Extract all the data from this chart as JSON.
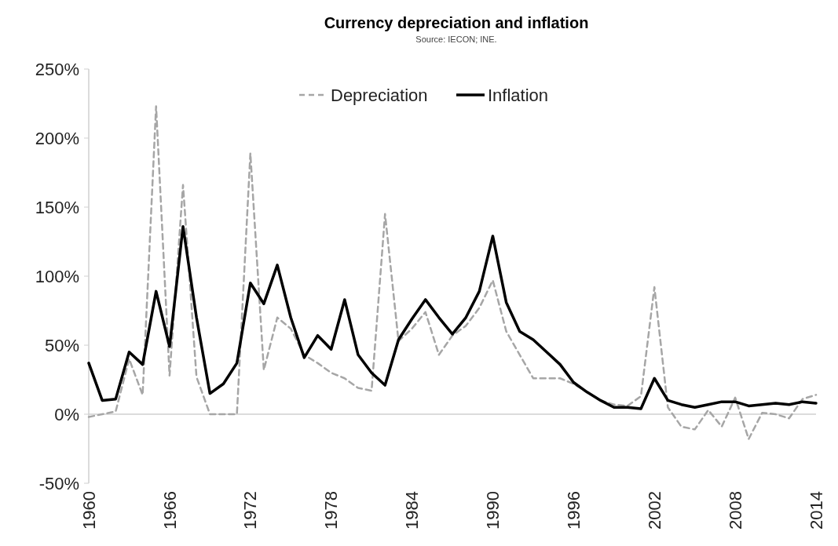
{
  "chart_data": {
    "type": "line",
    "title": "Currency depreciation and inflation",
    "annotations": [
      "Source: IECON; INE."
    ],
    "x": [
      1960,
      1961,
      1962,
      1963,
      1964,
      1965,
      1966,
      1967,
      1968,
      1969,
      1970,
      1971,
      1972,
      1973,
      1974,
      1975,
      1976,
      1977,
      1978,
      1979,
      1980,
      1981,
      1982,
      1983,
      1984,
      1985,
      1986,
      1987,
      1988,
      1989,
      1990,
      1991,
      1992,
      1993,
      1994,
      1995,
      1996,
      1997,
      1998,
      1999,
      2000,
      2001,
      2002,
      2003,
      2004,
      2005,
      2006,
      2007,
      2008,
      2009,
      2010,
      2011,
      2012,
      2013,
      2014
    ],
    "series": [
      {
        "name": "Depreciation",
        "color": "#a6a6a6",
        "line_style": "dashed",
        "values": [
          -2,
          0,
          2,
          40,
          14,
          223,
          28,
          166,
          27,
          0,
          0,
          0,
          189,
          32,
          70,
          62,
          43,
          37,
          30,
          26,
          19,
          17,
          145,
          53,
          62,
          74,
          43,
          57,
          64,
          77,
          97,
          60,
          43,
          26,
          26,
          26,
          22,
          16,
          10,
          7,
          6,
          13,
          92,
          5,
          -9,
          -11,
          3,
          -9,
          12,
          -18,
          1,
          0,
          -3,
          11,
          14
        ]
      },
      {
        "name": "Inflation",
        "color": "#000000",
        "line_style": "solid",
        "values": [
          37,
          10,
          11,
          45,
          36,
          89,
          49,
          136,
          70,
          15,
          22,
          37,
          95,
          80,
          108,
          70,
          41,
          57,
          47,
          83,
          43,
          30,
          21,
          54,
          69,
          83,
          70,
          58,
          70,
          89,
          129,
          81,
          60,
          54,
          45,
          36,
          23,
          16,
          10,
          5,
          5,
          4,
          26,
          10,
          7,
          5,
          7,
          9,
          9,
          6,
          7,
          8,
          7,
          9,
          8
        ]
      }
    ],
    "xlim": [
      1960,
      2014
    ],
    "xticks": [
      1960,
      1966,
      1972,
      1978,
      1984,
      1990,
      1996,
      2002,
      2008,
      2014
    ],
    "ylim": [
      -50,
      250
    ],
    "yticks": [
      {
        "value": -50,
        "label": "-50%"
      },
      {
        "value": 0,
        "label": "0%"
      },
      {
        "value": 50,
        "label": "50%"
      },
      {
        "value": 100,
        "label": "100%"
      },
      {
        "value": 150,
        "label": "150%"
      },
      {
        "value": 200,
        "label": "200%"
      },
      {
        "value": 250,
        "label": "250%"
      }
    ],
    "legend": "top",
    "marker": "none"
  }
}
